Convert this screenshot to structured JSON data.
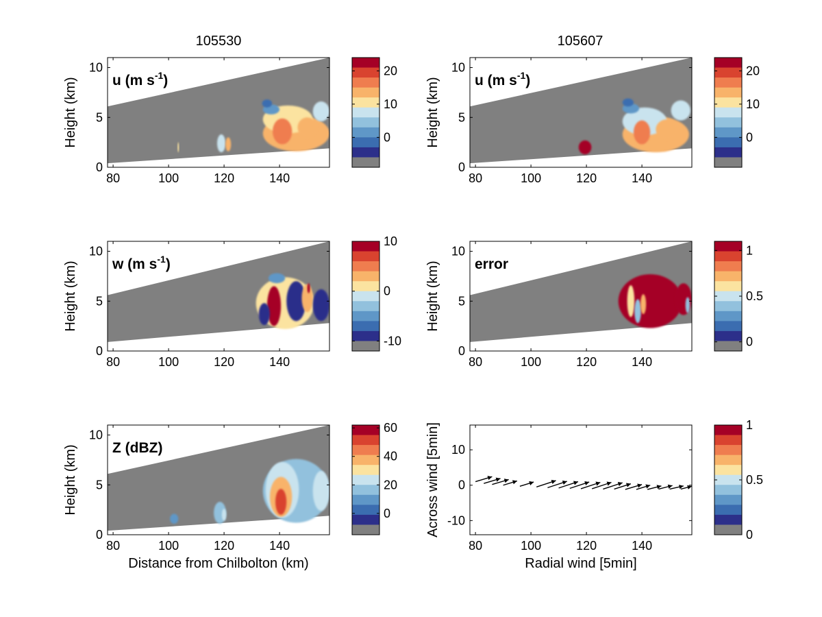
{
  "colors": {
    "colormap": [
      "#2c2f8a",
      "#3b6db0",
      "#5f97c7",
      "#92c1dd",
      "#c9e3ee",
      "#fbe3a0",
      "#f8b36a",
      "#ef7d4f",
      "#d9432f",
      "#a50026"
    ],
    "missing_gray": "#808080",
    "radar_gray": "#808080"
  },
  "columns": [
    {
      "title": "105530"
    },
    {
      "title": "105607"
    }
  ],
  "chart_data": [
    {
      "type": "heatmap",
      "panel": "u-105530",
      "inner_label": "u (m s",
      "inner_label_sup": "-1",
      "inner_label_end": ")",
      "xlim": [
        78,
        158
      ],
      "ylim": [
        0,
        11
      ],
      "xticks": [
        80,
        100,
        120,
        140
      ],
      "yticks": [
        0,
        5,
        10
      ],
      "ylabel": "Height (km)",
      "xlabel": "",
      "scan_wedge": {
        "top": [
          [
            78,
            6.1
          ],
          [
            158,
            11
          ]
        ],
        "bottom": [
          [
            78,
            0.4
          ],
          [
            158,
            1.9
          ]
        ]
      },
      "features": [
        {
          "x": 103.5,
          "y": 2.0,
          "rx": 0.3,
          "ry": 0.5,
          "value": 8
        },
        {
          "x": 119,
          "y": 2.4,
          "rx": 1.5,
          "ry": 0.9,
          "value": 7
        },
        {
          "x": 121.5,
          "y": 2.3,
          "rx": 1.0,
          "ry": 0.7,
          "value": 14
        },
        {
          "x": 146,
          "y": 3.4,
          "rx": 12,
          "ry": 1.8,
          "value": 12
        },
        {
          "x": 143,
          "y": 4.8,
          "rx": 9,
          "ry": 1.4,
          "value": 8
        },
        {
          "x": 141,
          "y": 3.6,
          "rx": 3.5,
          "ry": 1.3,
          "value": 16
        },
        {
          "x": 137,
          "y": 5.8,
          "rx": 3,
          "ry": 0.5,
          "value": 0
        },
        {
          "x": 135.5,
          "y": 6.4,
          "rx": 1.8,
          "ry": 0.4,
          "value": -3
        },
        {
          "x": 155,
          "y": 5.6,
          "rx": 3,
          "ry": 1.0,
          "value": 7
        },
        {
          "x": 150,
          "y": 4.0,
          "rx": 3.5,
          "ry": 1.0,
          "value": 13
        }
      ],
      "colorbar": {
        "vmin": -9,
        "vmax": 24,
        "ticks": [
          0,
          10,
          20
        ],
        "missing_band": true
      }
    },
    {
      "type": "heatmap",
      "panel": "u-105607",
      "inner_label": "u (m s",
      "inner_label_sup": "-1",
      "inner_label_end": ")",
      "xlim": [
        78,
        158
      ],
      "ylim": [
        0,
        11
      ],
      "xticks": [
        80,
        100,
        120,
        140
      ],
      "yticks": [
        0,
        5,
        10
      ],
      "ylabel": "Height (km)",
      "xlabel": "",
      "scan_wedge": {
        "top": [
          [
            78,
            6.1
          ],
          [
            158,
            11
          ]
        ],
        "bottom": [
          [
            78,
            0.4
          ],
          [
            158,
            1.9
          ]
        ]
      },
      "features": [
        {
          "x": 119.5,
          "y": 2.0,
          "rx": 2.3,
          "ry": 0.7,
          "value": 24
        },
        {
          "x": 145,
          "y": 3.3,
          "rx": 12,
          "ry": 1.8,
          "value": 11
        },
        {
          "x": 141,
          "y": 4.6,
          "rx": 8,
          "ry": 1.4,
          "value": 7
        },
        {
          "x": 140,
          "y": 3.5,
          "rx": 3,
          "ry": 1.2,
          "value": 16
        },
        {
          "x": 136,
          "y": 5.9,
          "rx": 3,
          "ry": 0.5,
          "value": 0
        },
        {
          "x": 135,
          "y": 6.5,
          "rx": 2,
          "ry": 0.4,
          "value": -4
        },
        {
          "x": 154,
          "y": 5.7,
          "rx": 3.5,
          "ry": 1.0,
          "value": 6
        },
        {
          "x": 149,
          "y": 3.8,
          "rx": 4,
          "ry": 1.0,
          "value": 12
        }
      ],
      "colorbar": {
        "vmin": -9,
        "vmax": 24,
        "ticks": [
          0,
          10,
          20
        ],
        "missing_band": true
      }
    },
    {
      "type": "heatmap",
      "panel": "w-105530",
      "inner_label": "w (m s",
      "inner_label_sup": "-1",
      "inner_label_end": ")",
      "xlim": [
        78,
        158
      ],
      "ylim": [
        0,
        11
      ],
      "xticks": [
        80,
        100,
        120,
        140
      ],
      "yticks": [
        0,
        5,
        10
      ],
      "ylabel": "Height (km)",
      "xlabel": "",
      "scan_wedge": {
        "top": [
          [
            78,
            5.6
          ],
          [
            158,
            11
          ]
        ],
        "bottom": [
          [
            78,
            0.9
          ],
          [
            158,
            2.8
          ]
        ]
      },
      "features": [
        {
          "x": 142,
          "y": 4.8,
          "rx": 10.5,
          "ry": 2.6,
          "value": 0
        },
        {
          "x": 138,
          "y": 4.5,
          "rx": 2.5,
          "ry": 2.0,
          "value": 9
        },
        {
          "x": 146,
          "y": 5.0,
          "rx": 3.5,
          "ry": 2.0,
          "value": -10
        },
        {
          "x": 134.5,
          "y": 3.7,
          "rx": 2,
          "ry": 1.1,
          "value": -10
        },
        {
          "x": 139,
          "y": 7.3,
          "rx": 3,
          "ry": 0.5,
          "value": -7
        },
        {
          "x": 150,
          "y": 5.3,
          "rx": 2,
          "ry": 1.4,
          "value": 3
        },
        {
          "x": 155,
          "y": 4.6,
          "rx": 3,
          "ry": 1.6,
          "value": -10
        },
        {
          "x": 150.5,
          "y": 6.3,
          "rx": 0.5,
          "ry": 0.5,
          "value": 10
        }
      ],
      "colorbar": {
        "vmin": -12,
        "vmax": 10,
        "ticks": [
          -10,
          0,
          10
        ],
        "missing_band": true
      }
    },
    {
      "type": "heatmap",
      "panel": "error-105607",
      "inner_label": "error",
      "inner_label_sup": "",
      "inner_label_end": "",
      "xlim": [
        78,
        158
      ],
      "ylim": [
        0,
        11
      ],
      "xticks": [
        80,
        100,
        120,
        140
      ],
      "yticks": [
        0,
        5,
        10
      ],
      "ylabel": "Height (km)",
      "xlabel": "",
      "scan_wedge": {
        "top": [
          [
            78,
            5.6
          ],
          [
            158,
            11
          ]
        ],
        "bottom": [
          [
            78,
            0.9
          ],
          [
            158,
            2.8
          ]
        ]
      },
      "features": [
        {
          "x": 143,
          "y": 5.0,
          "rx": 11.5,
          "ry": 2.7,
          "value": 1.05
        },
        {
          "x": 136,
          "y": 5.0,
          "rx": 1.3,
          "ry": 1.6,
          "value": 0.55
        },
        {
          "x": 138.5,
          "y": 4.0,
          "rx": 1.2,
          "ry": 1.2,
          "value": 0.3
        },
        {
          "x": 140.5,
          "y": 4.7,
          "rx": 1.0,
          "ry": 1.0,
          "value": 0.7
        },
        {
          "x": 155,
          "y": 5.2,
          "rx": 3,
          "ry": 1.6,
          "value": 1.05
        },
        {
          "x": 156.5,
          "y": 4.6,
          "rx": 0.8,
          "ry": 0.8,
          "value": 0.35
        }
      ],
      "colorbar": {
        "vmin": -0.1,
        "vmax": 1.1,
        "ticks": [
          0,
          0.5,
          1
        ],
        "missing_band": true
      }
    },
    {
      "type": "heatmap",
      "panel": "Z-105530",
      "inner_label": "Z (dBZ)",
      "inner_label_sup": "",
      "inner_label_end": "",
      "xlim": [
        78,
        158
      ],
      "ylim": [
        0,
        11
      ],
      "xticks": [
        80,
        100,
        120,
        140
      ],
      "yticks": [
        0,
        5,
        10
      ],
      "ylabel": "Height (km)",
      "xlabel": "Distance from Chilbolton (km)",
      "scan_wedge": {
        "top": [
          [
            78,
            6.1
          ],
          [
            158,
            11
          ]
        ],
        "bottom": [
          [
            78,
            0.4
          ],
          [
            158,
            1.9
          ]
        ]
      },
      "features": [
        {
          "x": 102,
          "y": 1.6,
          "rx": 1.5,
          "ry": 0.5,
          "value": 2
        },
        {
          "x": 118.5,
          "y": 2.2,
          "rx": 2.2,
          "ry": 1.1,
          "value": 12
        },
        {
          "x": 120,
          "y": 2.0,
          "rx": 0.8,
          "ry": 0.6,
          "value": 22
        },
        {
          "x": 146,
          "y": 4.4,
          "rx": 12,
          "ry": 3.2,
          "value": 12
        },
        {
          "x": 141,
          "y": 4.5,
          "rx": 6,
          "ry": 2.8,
          "value": 22
        },
        {
          "x": 140.5,
          "y": 3.8,
          "rx": 4,
          "ry": 2.0,
          "value": 38
        },
        {
          "x": 140.5,
          "y": 3.3,
          "rx": 2,
          "ry": 1.3,
          "value": 52
        },
        {
          "x": 155,
          "y": 4.4,
          "rx": 3,
          "ry": 2.0,
          "value": 18
        }
      ],
      "colorbar": {
        "vmin": -15,
        "vmax": 62,
        "ticks": [
          0,
          20,
          40,
          60
        ],
        "missing_band": true
      }
    },
    {
      "type": "scatter",
      "panel": "wind-vectors",
      "xlim": [
        78,
        158
      ],
      "ylim": [
        -14,
        17
      ],
      "xticks": [
        80,
        100,
        120,
        140
      ],
      "yticks": [
        -10,
        0,
        10
      ],
      "xlabel": "Radial wind [5min]",
      "ylabel": "Across wind [5min]",
      "vectors": [
        {
          "x": 80,
          "y": 1.0,
          "dx": 6,
          "dy": 1.4
        },
        {
          "x": 83,
          "y": 0.5,
          "dx": 6,
          "dy": 1.4
        },
        {
          "x": 86,
          "y": 0.2,
          "dx": 6,
          "dy": 1.4
        },
        {
          "x": 90,
          "y": 0.0,
          "dx": 5,
          "dy": 1.2
        },
        {
          "x": 96,
          "y": -0.3,
          "dx": 5,
          "dy": 1.2
        },
        {
          "x": 102,
          "y": -0.5,
          "dx": 7,
          "dy": 1.8
        },
        {
          "x": 106,
          "y": -0.7,
          "dx": 7,
          "dy": 1.8
        },
        {
          "x": 110,
          "y": -0.8,
          "dx": 7,
          "dy": 1.8
        },
        {
          "x": 114,
          "y": -0.9,
          "dx": 7,
          "dy": 1.8
        },
        {
          "x": 118,
          "y": -1.0,
          "dx": 7,
          "dy": 1.8
        },
        {
          "x": 122,
          "y": -1.0,
          "dx": 7,
          "dy": 1.8
        },
        {
          "x": 126,
          "y": -1.1,
          "dx": 7,
          "dy": 1.8
        },
        {
          "x": 130,
          "y": -1.1,
          "dx": 6,
          "dy": 1.5
        },
        {
          "x": 134,
          "y": -1.2,
          "dx": 6,
          "dy": 1.4
        },
        {
          "x": 138,
          "y": -1.2,
          "dx": 5,
          "dy": 1.2
        },
        {
          "x": 142,
          "y": -1.2,
          "dx": 5,
          "dy": 1.0
        },
        {
          "x": 146,
          "y": -1.1,
          "dx": 5,
          "dy": 1.0
        },
        {
          "x": 150,
          "y": -1.1,
          "dx": 5,
          "dy": 0.9
        },
        {
          "x": 154,
          "y": -1.1,
          "dx": 4,
          "dy": 0.8
        }
      ],
      "colorbar": {
        "vmin": 0,
        "vmax": 1,
        "ticks": [
          0,
          0.5,
          1
        ],
        "missing_band": true
      }
    }
  ]
}
